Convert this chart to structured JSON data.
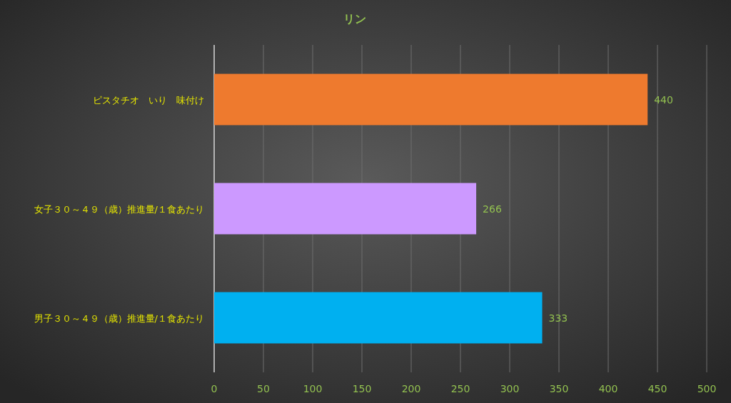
{
  "chart_data": {
    "type": "bar",
    "orientation": "horizontal",
    "title": "リン",
    "categories": [
      "ピスタチオ　いり　味付け",
      "女子３０～４９（歳）推進量/１食あたり",
      "男子３０～４９（歳）推進量/１食あたり"
    ],
    "values": [
      440,
      266,
      333
    ],
    "colors": [
      "#ee7a2e",
      "#cc99ff",
      "#00b0f0"
    ],
    "xlim": [
      0,
      500
    ],
    "xticks": [
      0,
      50,
      100,
      150,
      200,
      250,
      300,
      350,
      400,
      450,
      500
    ],
    "grid": "x",
    "data_labels": true
  }
}
